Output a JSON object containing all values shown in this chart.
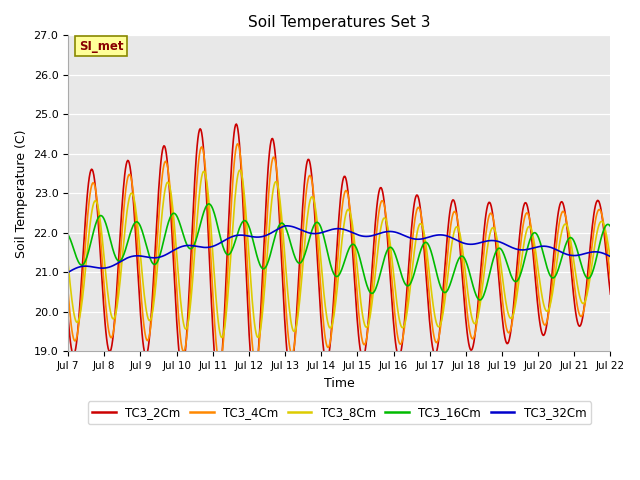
{
  "title": "Soil Temperatures Set 3",
  "xlabel": "Time",
  "ylabel": "Soil Temperature (C)",
  "ylim": [
    19.0,
    27.0
  ],
  "yticks": [
    19.0,
    20.0,
    21.0,
    22.0,
    23.0,
    24.0,
    25.0,
    26.0,
    27.0
  ],
  "xtick_labels": [
    "Jul 7",
    "Jul 8",
    "Jul 9",
    "Jul 10",
    "Jul 11",
    "Jul 12",
    "Jul 13",
    "Jul 14",
    "Jul 15",
    "Jul 16",
    "Jul 17",
    "Jul 18",
    "Jul 19",
    "Jul 20",
    "Jul 21",
    "Jul 22"
  ],
  "series_colors": [
    "#cc0000",
    "#ff8800",
    "#ddcc00",
    "#00bb00",
    "#0000cc"
  ],
  "series_labels": [
    "TC3_2Cm",
    "TC3_4Cm",
    "TC3_8Cm",
    "TC3_16Cm",
    "TC3_32Cm"
  ],
  "annotation_text": "SI_met",
  "bg_color": "#e8e8e8",
  "fig_color": "#ffffff",
  "n_points": 720
}
